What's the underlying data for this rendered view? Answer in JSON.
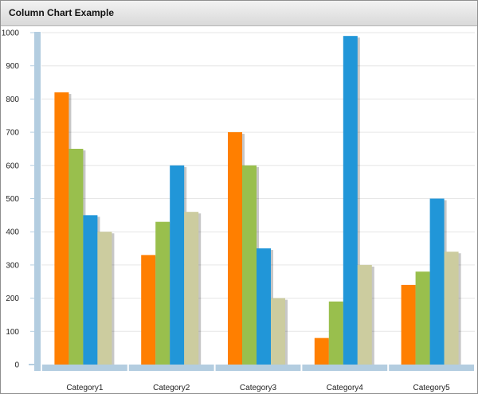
{
  "window": {
    "title": "Column Chart Example"
  },
  "chart_data": {
    "type": "bar",
    "title": "Column Chart Example",
    "categories": [
      "Category1",
      "Category2",
      "Category3",
      "Category4",
      "Category5"
    ],
    "series": [
      {
        "color": "#ff7f00",
        "values": [
          820,
          330,
          700,
          80,
          240
        ]
      },
      {
        "color": "#99bf4d",
        "values": [
          650,
          430,
          600,
          190,
          280
        ]
      },
      {
        "color": "#2196d8",
        "values": [
          450,
          600,
          350,
          990,
          500
        ]
      },
      {
        "color": "#cccc9f",
        "values": [
          400,
          460,
          200,
          300,
          340
        ]
      }
    ],
    "ylim": [
      0,
      1000
    ],
    "yticks": [
      0,
      100,
      200,
      300,
      400,
      500,
      600,
      700,
      800,
      900,
      1000
    ],
    "grid": true,
    "axis_color": "#b3cde0",
    "xlabel": "",
    "ylabel": ""
  }
}
